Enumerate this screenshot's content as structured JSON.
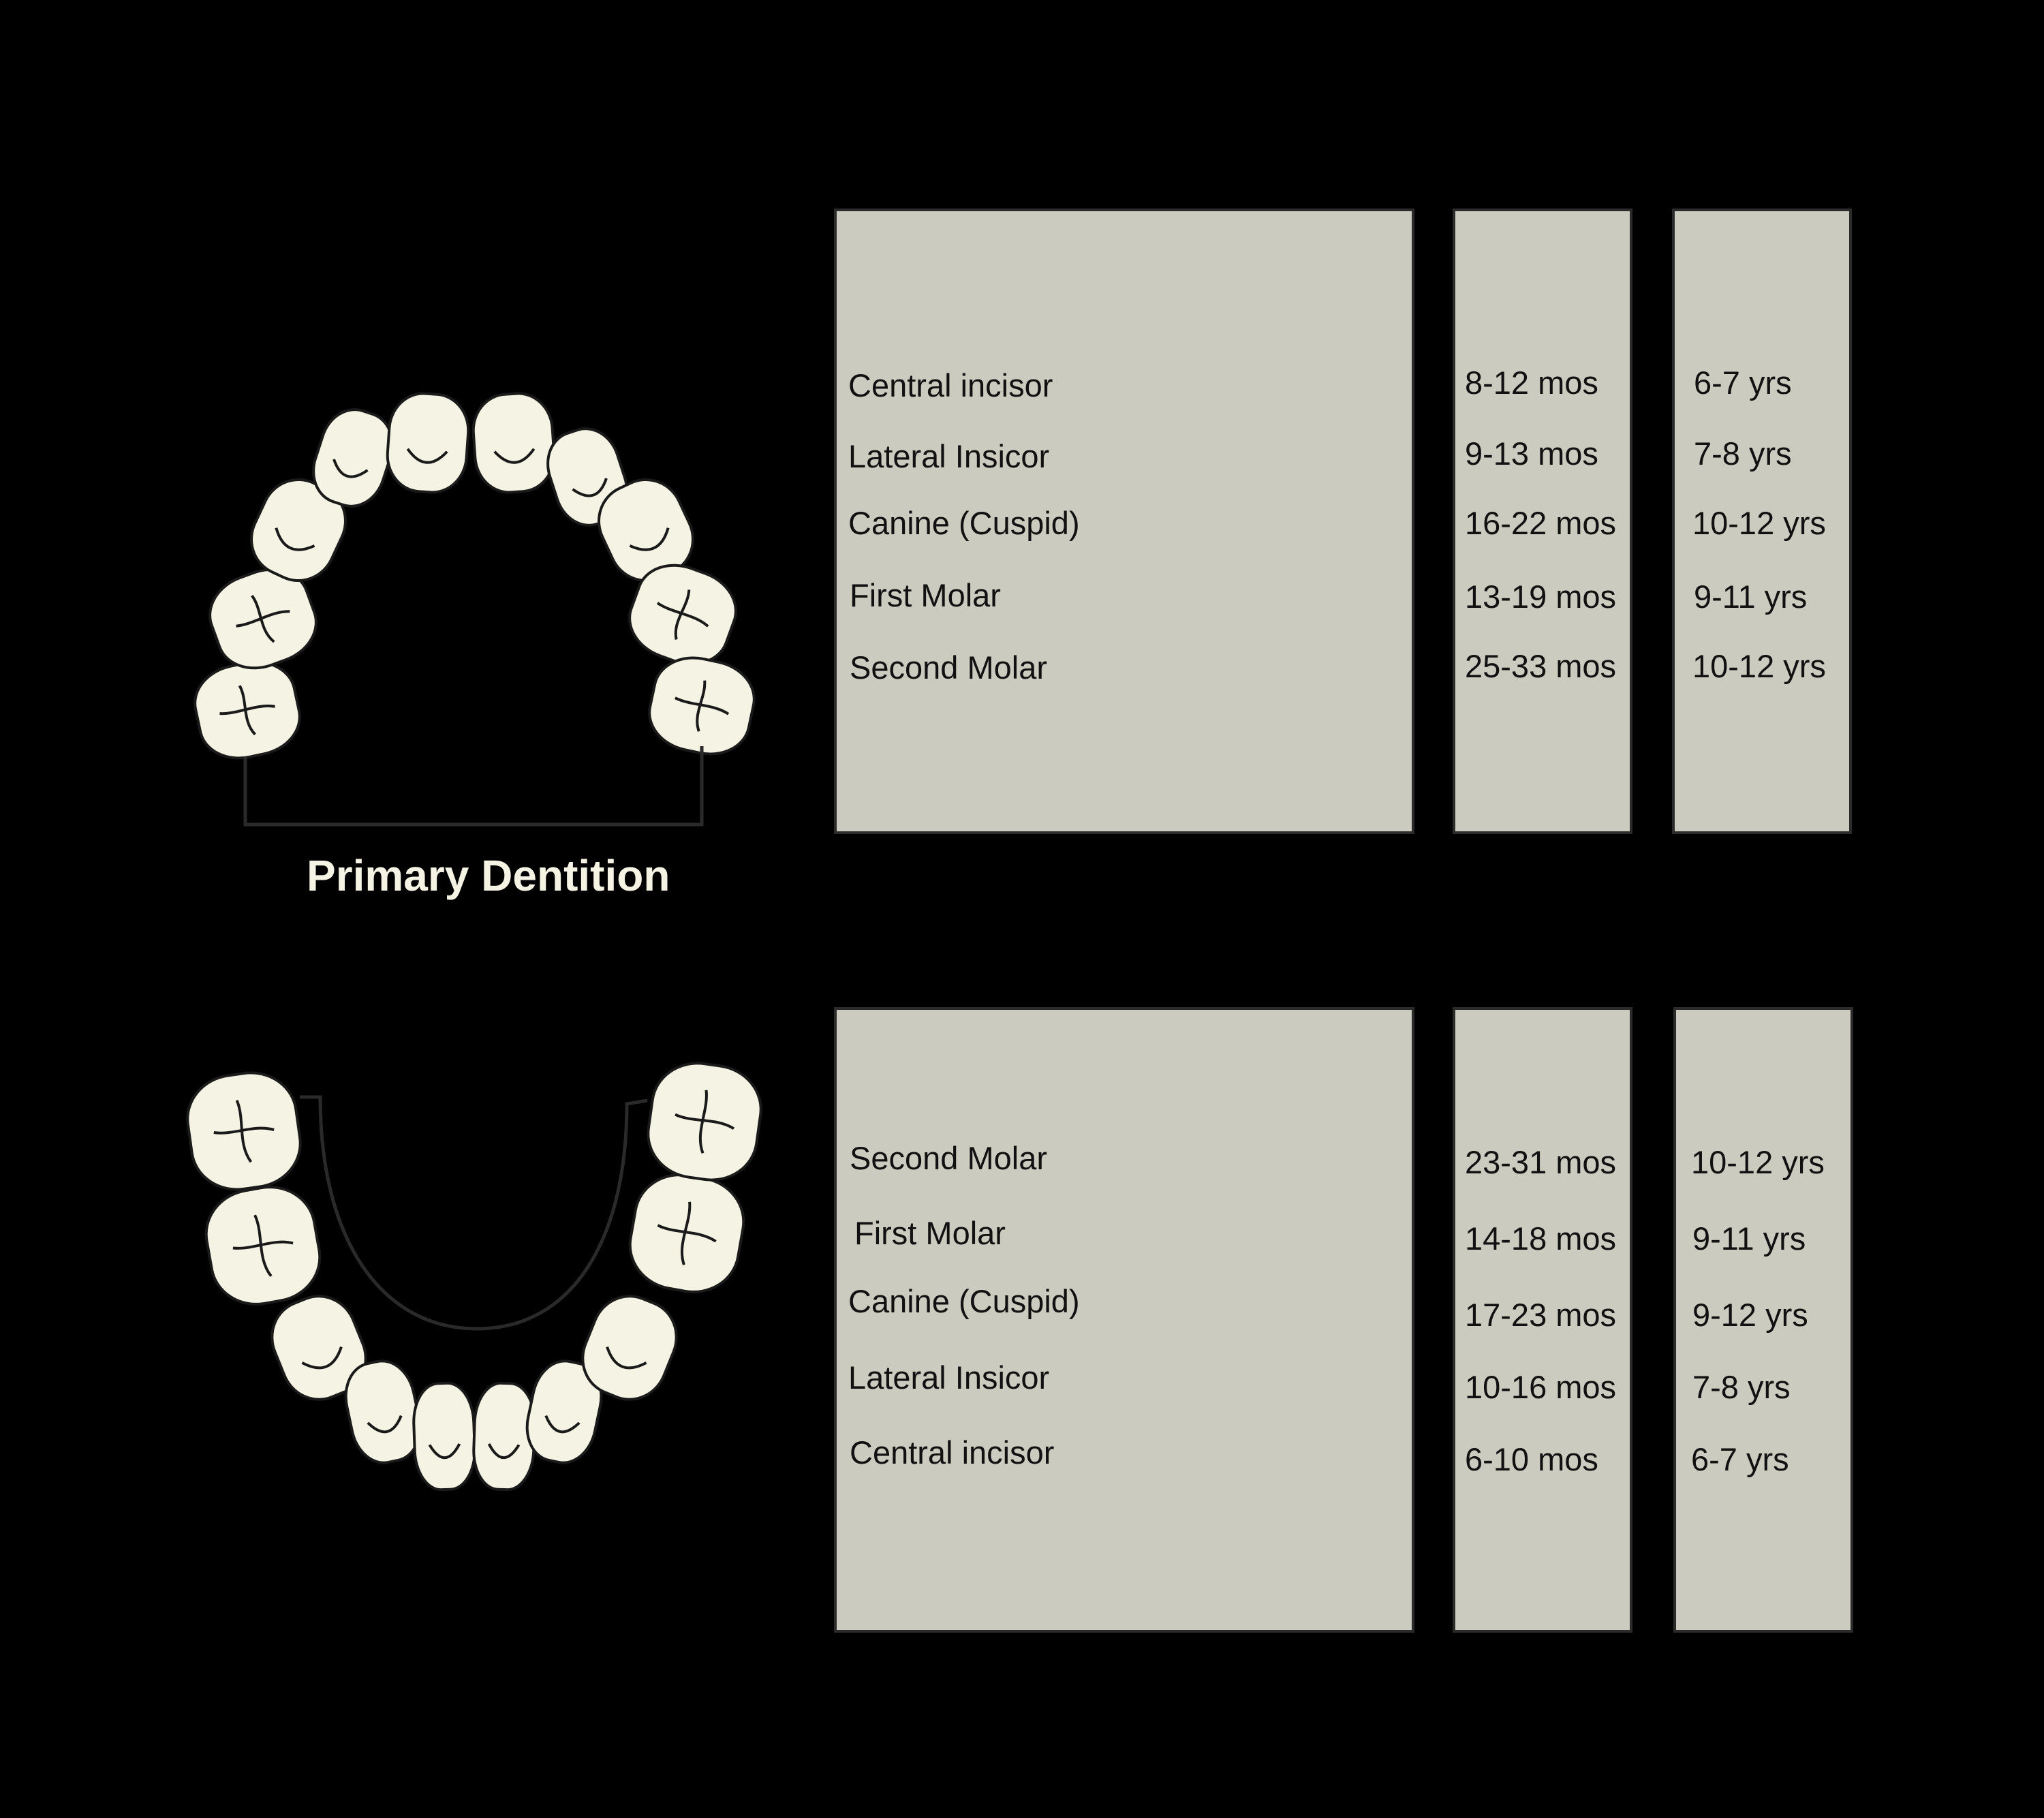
{
  "title": "Primary Dentition",
  "upper": {
    "rows": [
      {
        "tooth": "Central incisor",
        "eruption": "8-12 mos",
        "shed": "6-7 yrs"
      },
      {
        "tooth": "Lateral Insicor",
        "eruption": "9-13 mos",
        "shed": "7-8 yrs"
      },
      {
        "tooth": "Canine (Cuspid)",
        "eruption": "16-22 mos",
        "shed": "10-12 yrs"
      },
      {
        "tooth": "First Molar",
        "eruption": "13-19 mos",
        "shed": "9-11 yrs"
      },
      {
        "tooth": "Second Molar",
        "eruption": "25-33 mos",
        "shed": "10-12 yrs"
      }
    ]
  },
  "lower": {
    "rows": [
      {
        "tooth": "Second Molar",
        "eruption": "23-31 mos",
        "shed": "10-12 yrs"
      },
      {
        "tooth": "First Molar",
        "eruption": "14-18 mos",
        "shed": "9-11 yrs"
      },
      {
        "tooth": "Canine (Cuspid)",
        "eruption": "17-23 mos",
        "shed": "9-12 yrs"
      },
      {
        "tooth": "Lateral Insicor",
        "eruption": "10-16 mos",
        "shed": "7-8 yrs"
      },
      {
        "tooth": "Central incisor",
        "eruption": "6-10 mos",
        "shed": "6-7 yrs"
      }
    ]
  },
  "colors": {
    "background": "#000000",
    "panel": "#cccbc0",
    "tooth": "#f5f3e3",
    "outline": "#1a1a1a"
  }
}
